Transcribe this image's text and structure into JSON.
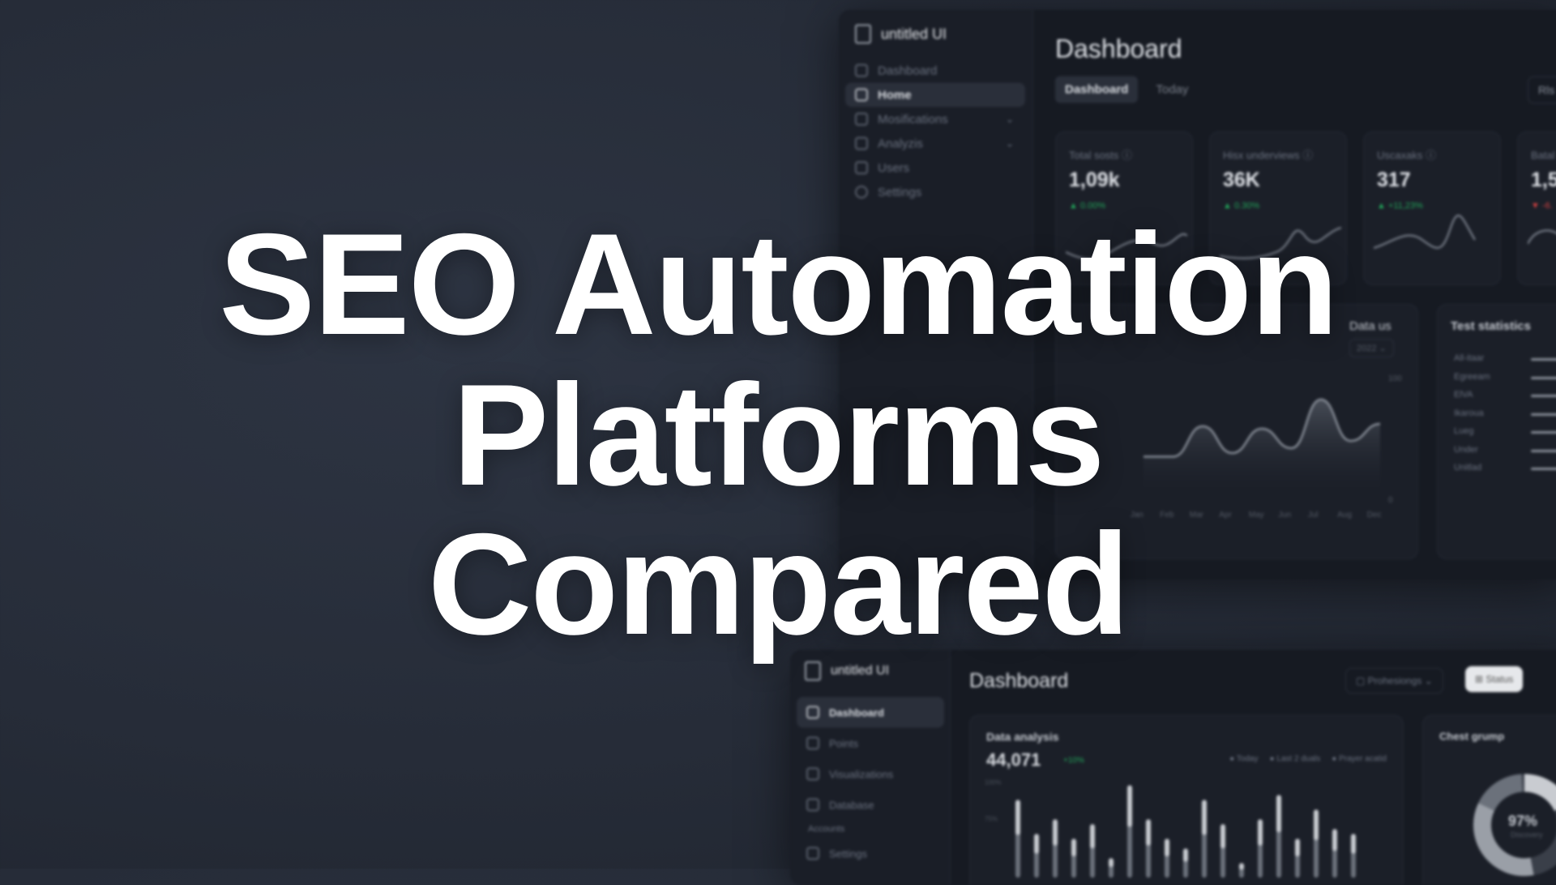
{
  "headline": {
    "line1": "SEO Automation",
    "line2": "Platforms",
    "line3": "Compared"
  },
  "top_dashboard": {
    "brand": "untitled UI",
    "nav": [
      {
        "label": "Dashboard",
        "icon": "home-icon"
      },
      {
        "label": "Home",
        "icon": "grid-icon",
        "active": true
      },
      {
        "label": "Mosifications",
        "icon": "users-icon",
        "chevron": true
      },
      {
        "label": "Analyzis",
        "icon": "bar-chart-icon",
        "chevron": true
      },
      {
        "label": "Users",
        "icon": "user-icon"
      }
    ],
    "settings_label": "Settings",
    "title": "Dashboard",
    "tabs": [
      {
        "label": "Dashboard",
        "active": true
      },
      {
        "label": "Today"
      }
    ],
    "right_button": "Rls",
    "stats": [
      {
        "label": "Total sosts",
        "value": "1,09k",
        "change": "▲ 0.00%",
        "positive": true
      },
      {
        "label": "Hisx underviews",
        "value": "36K",
        "change": "▲ 0.30%",
        "positive": true
      },
      {
        "label": "Uscaxaks",
        "value": "317",
        "change": "▲ +11,23%",
        "positive": true
      },
      {
        "label": "Batal",
        "value": "1,5",
        "change": "▼ -6.",
        "positive": false
      }
    ],
    "area_chart": {
      "title": "Data us",
      "select": "2022",
      "y_ticks": [
        "100",
        "0"
      ],
      "ylim": [
        0,
        100
      ],
      "months": [
        "Jan",
        "Feb",
        "Mar",
        "Apr",
        "May",
        "Jun",
        "Jul",
        "Aug",
        "Dec"
      ],
      "values": [
        35,
        35,
        60,
        38,
        58,
        42,
        82,
        48,
        62
      ]
    },
    "test_statistics": {
      "title": "Test statistics",
      "rows": [
        {
          "label": "All-itaar",
          "value": 100
        },
        {
          "label": "Egreeam",
          "value": 100
        },
        {
          "label": "ElVA",
          "value": 100
        },
        {
          "label": "Ikaroua",
          "value": 100
        },
        {
          "label": "Lueg",
          "value": 100
        },
        {
          "label": "Under",
          "value": 100
        },
        {
          "label": "Unitlad",
          "value": 60
        }
      ]
    }
  },
  "bottom_dashboard": {
    "brand": "untitled UI",
    "nav": [
      {
        "label": "Dashboard",
        "icon": "grid-icon",
        "active": true
      },
      {
        "label": "Points",
        "icon": "clock-icon"
      },
      {
        "label": "Visualizations",
        "icon": "users-icon"
      },
      {
        "label": "Database",
        "icon": "bar-chart-icon"
      }
    ],
    "section_label": "Accounts",
    "settings_label": "Settings",
    "title": "Dashboard",
    "select_label": "Prohesiongs",
    "status_button": "Status",
    "data_analysis": {
      "title": "Data analysis",
      "value": "44,071",
      "change": "+10%",
      "legend": [
        "Today",
        "Last 2 duals",
        "Prayer acatid"
      ],
      "y_ticks": [
        "100%",
        "75%"
      ],
      "bars": [
        80,
        45,
        60,
        40,
        55,
        20,
        95,
        60,
        40,
        30,
        80,
        55,
        15,
        60,
        85,
        40,
        70,
        50,
        45
      ]
    },
    "donut": {
      "title": "Chest grump",
      "percent": "97%",
      "sub": "Discovery",
      "value": 97
    }
  },
  "colors": {
    "positive": "#22a55a",
    "negative": "#d04040",
    "background": "#262c38"
  }
}
